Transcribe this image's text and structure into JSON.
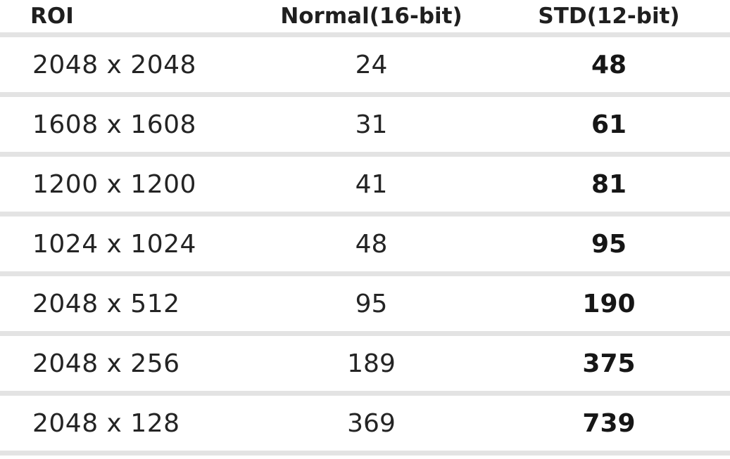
{
  "colors": {
    "background": "#ffffff",
    "separator": "#e3e3e3",
    "text": "#1f1f1f"
  },
  "table": {
    "columns": [
      {
        "key": "roi",
        "label": "ROI"
      },
      {
        "key": "normal",
        "label": "Normal(16-bit)"
      },
      {
        "key": "std",
        "label": "STD(12-bit)"
      }
    ],
    "rows": [
      {
        "roi": "2048 x 2048",
        "normal": "24",
        "std": "48"
      },
      {
        "roi": "1608 x 1608",
        "normal": "31",
        "std": "61"
      },
      {
        "roi": "1200 x 1200",
        "normal": "41",
        "std": "81"
      },
      {
        "roi": "1024 x 1024",
        "normal": "48",
        "std": "95"
      },
      {
        "roi": "2048 x 512",
        "normal": "95",
        "std": "190"
      },
      {
        "roi": "2048 x 256",
        "normal": "189",
        "std": "375"
      },
      {
        "roi": "2048 x 128",
        "normal": "369",
        "std": "739"
      }
    ]
  },
  "chart_data": {
    "type": "table",
    "columns": [
      "ROI",
      "Normal(16-bit)",
      "STD(12-bit)"
    ],
    "rows": [
      [
        "2048 x 2048",
        24,
        48
      ],
      [
        "1608 x 1608",
        31,
        61
      ],
      [
        "1200 x 1200",
        41,
        81
      ],
      [
        "1024 x 1024",
        48,
        95
      ],
      [
        "2048 x 512",
        95,
        190
      ],
      [
        "2048 x 256",
        189,
        375
      ],
      [
        "2048 x 128",
        369,
        739
      ]
    ]
  }
}
